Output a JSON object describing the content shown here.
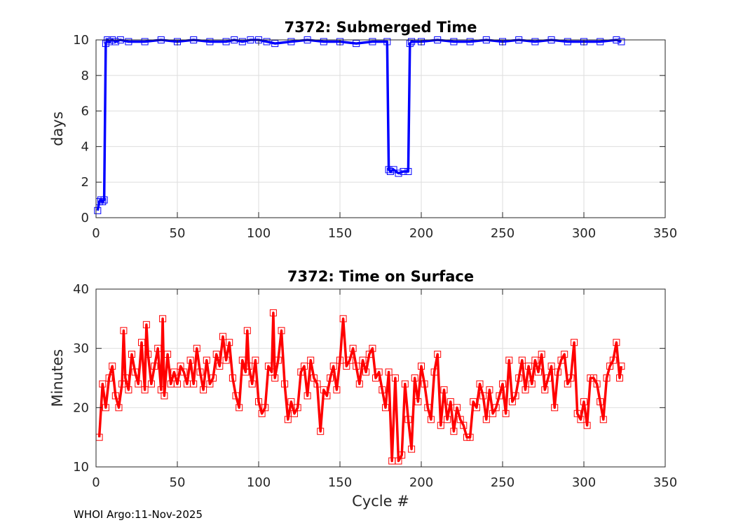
{
  "footer": "WHOI Argo:11-Nov-2025",
  "chart_data": [
    {
      "type": "line",
      "title": "7372: Submerged Time",
      "xlabel": "",
      "ylabel": "days",
      "xlim": [
        0,
        350
      ],
      "ylim": [
        0,
        10
      ],
      "xticks": [
        "0",
        "50",
        "100",
        "150",
        "200",
        "250",
        "300",
        "350"
      ],
      "yticks": [
        "0",
        "2",
        "4",
        "6",
        "8",
        "10"
      ],
      "grid": true,
      "color": "#0000ff",
      "marker": "square",
      "series": [
        {
          "name": "Submerged Time",
          "x": [
            1,
            2,
            3,
            4,
            5,
            6,
            7,
            8,
            10,
            12,
            15,
            20,
            30,
            40,
            50,
            60,
            70,
            80,
            85,
            90,
            95,
            100,
            105,
            110,
            120,
            130,
            140,
            150,
            160,
            170,
            179,
            180,
            181,
            183,
            186,
            189,
            192,
            193,
            194,
            200,
            210,
            220,
            230,
            240,
            250,
            260,
            270,
            280,
            290,
            300,
            310,
            320,
            323
          ],
          "y": [
            0.4,
            0.9,
            1.0,
            0.9,
            1.0,
            9.8,
            10.0,
            9.9,
            10.0,
            9.9,
            10.0,
            9.9,
            9.9,
            10.0,
            9.9,
            10.0,
            9.9,
            9.9,
            10.0,
            9.9,
            10.0,
            10.0,
            9.9,
            9.8,
            9.9,
            10.0,
            9.9,
            9.9,
            9.8,
            9.9,
            9.9,
            2.7,
            2.6,
            2.7,
            2.5,
            2.6,
            2.6,
            9.8,
            9.9,
            9.9,
            10.0,
            9.9,
            9.9,
            10.0,
            9.9,
            10.0,
            9.9,
            10.0,
            9.9,
            9.9,
            9.9,
            10.0,
            9.9
          ]
        }
      ]
    },
    {
      "type": "line",
      "title": "7372: Time on Surface",
      "xlabel": "Cycle #",
      "ylabel": "Minutes",
      "xlim": [
        0,
        350
      ],
      "ylim": [
        10,
        40
      ],
      "xticks": [
        "0",
        "50",
        "100",
        "150",
        "200",
        "250",
        "300",
        "350"
      ],
      "yticks": [
        "10",
        "20",
        "30",
        "40"
      ],
      "grid": true,
      "color": "#ff0000",
      "marker": "square",
      "series": [
        {
          "name": "Time on Surface",
          "x": [
            2,
            4,
            6,
            8,
            10,
            12,
            14,
            16,
            17,
            18,
            20,
            22,
            24,
            26,
            28,
            30,
            31,
            32,
            34,
            36,
            38,
            40,
            41,
            42,
            44,
            46,
            48,
            50,
            52,
            54,
            56,
            58,
            60,
            62,
            64,
            66,
            68,
            70,
            72,
            74,
            76,
            78,
            80,
            82,
            84,
            86,
            88,
            90,
            92,
            93,
            94,
            96,
            98,
            100,
            102,
            104,
            106,
            108,
            109,
            110,
            112,
            114,
            116,
            118,
            120,
            122,
            124,
            126,
            128,
            130,
            132,
            134,
            136,
            138,
            140,
            142,
            144,
            146,
            148,
            150,
            152,
            154,
            156,
            158,
            160,
            162,
            164,
            166,
            168,
            170,
            172,
            174,
            176,
            178,
            180,
            182,
            184,
            186,
            188,
            190,
            192,
            194,
            196,
            198,
            200,
            202,
            204,
            206,
            208,
            210,
            212,
            214,
            216,
            218,
            220,
            222,
            224,
            226,
            228,
            230,
            232,
            234,
            236,
            238,
            240,
            242,
            244,
            246,
            248,
            250,
            252,
            254,
            256,
            258,
            260,
            262,
            264,
            266,
            268,
            270,
            272,
            274,
            276,
            278,
            280,
            282,
            284,
            286,
            288,
            290,
            292,
            294,
            296,
            298,
            300,
            302,
            304,
            306,
            308,
            310,
            312,
            314,
            316,
            318,
            320,
            322,
            323
          ],
          "y": [
            15,
            24,
            20,
            25,
            27,
            22,
            20,
            24,
            33,
            25,
            23,
            29,
            26,
            24,
            31,
            23,
            34,
            29,
            24,
            27,
            30,
            23,
            35,
            22,
            29,
            24,
            26,
            24,
            27,
            26,
            24,
            28,
            24,
            30,
            26,
            23,
            28,
            24,
            25,
            29,
            27,
            32,
            28,
            31,
            25,
            22,
            20,
            28,
            26,
            33,
            27,
            24,
            28,
            21,
            19,
            20,
            27,
            26,
            36,
            25,
            28,
            33,
            24,
            18,
            21,
            19,
            20,
            26,
            27,
            22,
            28,
            25,
            24,
            16,
            23,
            22,
            25,
            27,
            23,
            28,
            35,
            27,
            28,
            30,
            27,
            24,
            28,
            26,
            29,
            30,
            25,
            26,
            23,
            20,
            26,
            11,
            25,
            11,
            12,
            24,
            18,
            13,
            25,
            21,
            27,
            24,
            20,
            18,
            26,
            29,
            17,
            23,
            18,
            21,
            16,
            20,
            18,
            17,
            15,
            15,
            21,
            20,
            24,
            22,
            18,
            23,
            19,
            20,
            22,
            24,
            19,
            28,
            21,
            22,
            25,
            28,
            23,
            27,
            24,
            28,
            26,
            29,
            23,
            25,
            27,
            20,
            26,
            28,
            29,
            24,
            25,
            31,
            19,
            18,
            21,
            17,
            25,
            25,
            24,
            21,
            18,
            25,
            27,
            28,
            31,
            25,
            27
          ]
        }
      ]
    }
  ]
}
